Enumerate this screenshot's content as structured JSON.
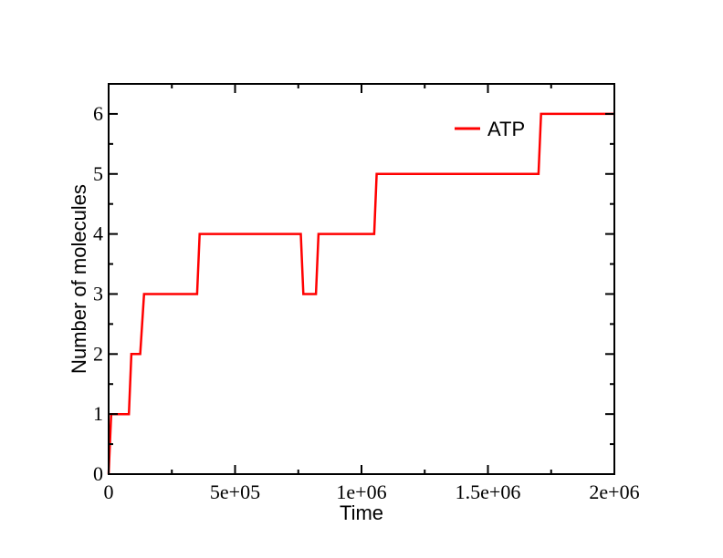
{
  "chart_data": {
    "type": "line",
    "title": "",
    "xlabel": "Time",
    "ylabel": "Number of molecules",
    "xlim": [
      0,
      2000000
    ],
    "ylim": [
      0,
      6.5
    ],
    "x_ticks": [
      {
        "value": 0,
        "label": "0"
      },
      {
        "value": 500000,
        "label": "5e+05"
      },
      {
        "value": 1000000,
        "label": "1e+06"
      },
      {
        "value": 1500000,
        "label": "1.5e+06"
      },
      {
        "value": 2000000,
        "label": "2e+06"
      }
    ],
    "y_ticks": [
      {
        "value": 0,
        "label": "0"
      },
      {
        "value": 1,
        "label": "1"
      },
      {
        "value": 2,
        "label": "2"
      },
      {
        "value": 3,
        "label": "3"
      },
      {
        "value": 4,
        "label": "4"
      },
      {
        "value": 5,
        "label": "5"
      },
      {
        "value": 6,
        "label": "6"
      }
    ],
    "grid": false,
    "legend_position": "top-right",
    "series": [
      {
        "name": "ATP",
        "color": "#ff0000",
        "x": [
          0,
          10000,
          80000,
          90000,
          125000,
          140000,
          350000,
          360000,
          760000,
          770000,
          820000,
          830000,
          1050000,
          1060000,
          1700000,
          1710000,
          2000000
        ],
        "y": [
          0,
          1,
          1,
          2,
          2,
          3,
          3,
          4,
          4,
          3,
          3,
          4,
          4,
          5,
          5,
          6,
          6
        ]
      }
    ]
  }
}
